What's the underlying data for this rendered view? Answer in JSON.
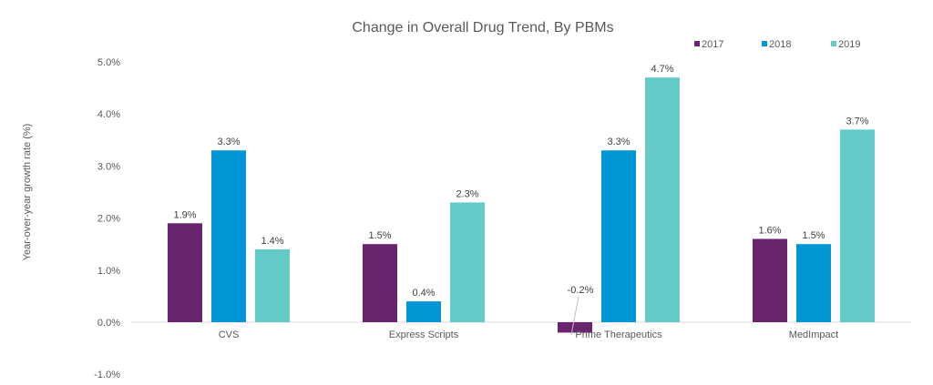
{
  "chart_data": {
    "type": "bar",
    "title": "Change in Overall Drug Trend, By PBMs",
    "xlabel": "",
    "ylabel": "Year-over-year growth rate (%)",
    "ylim": [
      -1.0,
      5.0
    ],
    "yticks": [
      -1.0,
      0.0,
      1.0,
      2.0,
      3.0,
      4.0,
      5.0
    ],
    "ytick_labels": [
      "-1.0%",
      "0.0%",
      "1.0%",
      "2.0%",
      "3.0%",
      "4.0%",
      "5.0%"
    ],
    "grid": false,
    "legend_position": "top-right",
    "categories": [
      "CVS",
      "Express Scripts",
      "Prime Therapeutics",
      "MedImpact"
    ],
    "series": [
      {
        "name": "2017",
        "color": "#68246d",
        "values": [
          1.9,
          1.5,
          -0.2,
          1.6
        ],
        "labels": [
          "1.9%",
          "1.5%",
          "-0.2%",
          "1.6%"
        ]
      },
      {
        "name": "2018",
        "color": "#0096d6",
        "values": [
          3.3,
          0.4,
          3.3,
          1.5
        ],
        "labels": [
          "3.3%",
          "0.4%",
          "3.3%",
          "1.5%"
        ]
      },
      {
        "name": "2019",
        "color": "#63cac7",
        "values": [
          1.4,
          2.3,
          4.7,
          3.7
        ],
        "labels": [
          "1.4%",
          "2.3%",
          "4.7%",
          "3.7%"
        ]
      }
    ]
  }
}
